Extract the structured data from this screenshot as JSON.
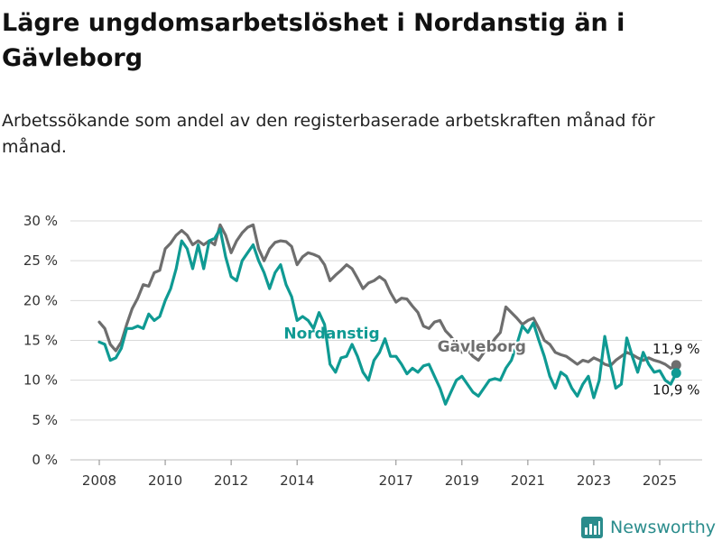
{
  "title": "Lägre ungdomsarbetslöshet i Nordanstig än i Gävleborg",
  "subtitle": "Arbetssökande som andel av den registerbaserade arbetskraften månad för månad.",
  "brand": {
    "name": "Newsworthy",
    "logo_icon": "bar-chart-logo-icon"
  },
  "colors": {
    "nordanstig": "#0f9a93",
    "gavleborg": "#6e6e6e",
    "grid": "#d9d9d9",
    "brand": "#2a8c8c"
  },
  "chart_data": {
    "type": "line",
    "xlabel": "",
    "ylabel": "",
    "ylim": [
      0,
      30
    ],
    "y_ticks": [
      0,
      5,
      10,
      15,
      20,
      25,
      30
    ],
    "y_tick_labels": [
      "0 %",
      "5 %",
      "10 %",
      "15 %",
      "20 %",
      "25 %",
      "30 %"
    ],
    "x_ticks": [
      2008,
      2010,
      2012,
      2014,
      2017,
      2019,
      2021,
      2023,
      2025
    ],
    "x_tick_labels": [
      "2008",
      "2010",
      "2012",
      "2014",
      "2017",
      "2019",
      "2021",
      "2023",
      "2025"
    ],
    "grid": "horizontal",
    "series": [
      {
        "name": "Gävleborg",
        "color": "#6e6e6e",
        "end_label": "11,9 %",
        "points": [
          [
            "2008-01",
            17.3
          ],
          [
            "2008-03",
            16.5
          ],
          [
            "2008-05",
            14.5
          ],
          [
            "2008-07",
            13.7
          ],
          [
            "2008-09",
            14.8
          ],
          [
            "2008-11",
            17
          ],
          [
            "2009-01",
            19
          ],
          [
            "2009-03",
            20.3
          ],
          [
            "2009-05",
            22
          ],
          [
            "2009-07",
            21.8
          ],
          [
            "2009-09",
            23.5
          ],
          [
            "2009-11",
            23.8
          ],
          [
            "2010-01",
            26.5
          ],
          [
            "2010-03",
            27.2
          ],
          [
            "2010-05",
            28.2
          ],
          [
            "2010-07",
            28.8
          ],
          [
            "2010-09",
            28.2
          ],
          [
            "2010-11",
            27
          ],
          [
            "2011-01",
            27.5
          ],
          [
            "2011-03",
            27
          ],
          [
            "2011-05",
            27.5
          ],
          [
            "2011-07",
            27
          ],
          [
            "2011-09",
            29.5
          ],
          [
            "2011-11",
            28.2
          ],
          [
            "2012-01",
            26
          ],
          [
            "2012-03",
            27.5
          ],
          [
            "2012-05",
            28.5
          ],
          [
            "2012-07",
            29.2
          ],
          [
            "2012-09",
            29.5
          ],
          [
            "2012-11",
            26.5
          ],
          [
            "2013-01",
            25
          ],
          [
            "2013-03",
            26.5
          ],
          [
            "2013-05",
            27.3
          ],
          [
            "2013-07",
            27.5
          ],
          [
            "2013-09",
            27.4
          ],
          [
            "2013-11",
            26.8
          ],
          [
            "2014-01",
            24.5
          ],
          [
            "2014-03",
            25.5
          ],
          [
            "2014-05",
            26
          ],
          [
            "2014-07",
            25.8
          ],
          [
            "2014-09",
            25.5
          ],
          [
            "2014-11",
            24.5
          ],
          [
            "2015-01",
            22.5
          ],
          [
            "2015-03",
            23.2
          ],
          [
            "2015-05",
            23.8
          ],
          [
            "2015-07",
            24.5
          ],
          [
            "2015-09",
            24
          ],
          [
            "2015-11",
            22.8
          ],
          [
            "2016-01",
            21.5
          ],
          [
            "2016-03",
            22.2
          ],
          [
            "2016-05",
            22.5
          ],
          [
            "2016-07",
            23
          ],
          [
            "2016-09",
            22.5
          ],
          [
            "2016-11",
            21
          ],
          [
            "2017-01",
            19.8
          ],
          [
            "2017-03",
            20.3
          ],
          [
            "2017-05",
            20.2
          ],
          [
            "2017-07",
            19.3
          ],
          [
            "2017-09",
            18.5
          ],
          [
            "2017-11",
            16.8
          ],
          [
            "2018-01",
            16.5
          ],
          [
            "2018-03",
            17.3
          ],
          [
            "2018-05",
            17.5
          ],
          [
            "2018-07",
            16.2
          ],
          [
            "2018-09",
            15.5
          ],
          [
            "2018-11",
            14.5
          ],
          [
            "2019-01",
            13.5
          ],
          [
            "2019-03",
            13.8
          ],
          [
            "2019-05",
            13
          ],
          [
            "2019-07",
            12.5
          ],
          [
            "2019-09",
            13.5
          ],
          [
            "2019-11",
            14.2
          ],
          [
            "2020-01",
            15.2
          ],
          [
            "2020-03",
            16
          ],
          [
            "2020-05",
            19.2
          ],
          [
            "2020-07",
            18.5
          ],
          [
            "2020-09",
            17.8
          ],
          [
            "2020-11",
            17
          ],
          [
            "2021-01",
            17.5
          ],
          [
            "2021-03",
            17.8
          ],
          [
            "2021-05",
            16.5
          ],
          [
            "2021-07",
            15
          ],
          [
            "2021-09",
            14.5
          ],
          [
            "2021-11",
            13.5
          ],
          [
            "2022-01",
            13.2
          ],
          [
            "2022-03",
            13
          ],
          [
            "2022-05",
            12.5
          ],
          [
            "2022-07",
            12
          ],
          [
            "2022-09",
            12.5
          ],
          [
            "2022-11",
            12.3
          ],
          [
            "2023-01",
            12.8
          ],
          [
            "2023-03",
            12.5
          ],
          [
            "2023-05",
            12
          ],
          [
            "2023-07",
            11.8
          ],
          [
            "2023-09",
            12.5
          ],
          [
            "2023-11",
            13
          ],
          [
            "2024-01",
            13.5
          ],
          [
            "2024-03",
            13.2
          ],
          [
            "2024-05",
            12.8
          ],
          [
            "2024-07",
            12.5
          ],
          [
            "2024-09",
            12.8
          ],
          [
            "2024-11",
            12.5
          ],
          [
            "2025-01",
            12.3
          ],
          [
            "2025-03",
            12
          ],
          [
            "2025-05",
            11.5
          ],
          [
            "2025-07",
            11.9
          ]
        ]
      },
      {
        "name": "Nordanstig",
        "color": "#0f9a93",
        "end_label": "10,9 %",
        "points": [
          [
            "2008-01",
            14.8
          ],
          [
            "2008-03",
            14.5
          ],
          [
            "2008-05",
            12.5
          ],
          [
            "2008-07",
            12.8
          ],
          [
            "2008-09",
            14
          ],
          [
            "2008-11",
            16.5
          ],
          [
            "2009-01",
            16.5
          ],
          [
            "2009-03",
            16.8
          ],
          [
            "2009-05",
            16.5
          ],
          [
            "2009-07",
            18.3
          ],
          [
            "2009-09",
            17.5
          ],
          [
            "2009-11",
            18
          ],
          [
            "2010-01",
            20
          ],
          [
            "2010-03",
            21.5
          ],
          [
            "2010-05",
            24
          ],
          [
            "2010-07",
            27.5
          ],
          [
            "2010-09",
            26.5
          ],
          [
            "2010-11",
            24
          ],
          [
            "2011-01",
            27
          ],
          [
            "2011-03",
            24
          ],
          [
            "2011-05",
            27.5
          ],
          [
            "2011-07",
            27.8
          ],
          [
            "2011-09",
            29
          ],
          [
            "2011-11",
            25.5
          ],
          [
            "2012-01",
            23
          ],
          [
            "2012-03",
            22.5
          ],
          [
            "2012-05",
            25
          ],
          [
            "2012-07",
            26
          ],
          [
            "2012-09",
            27
          ],
          [
            "2012-11",
            25
          ],
          [
            "2013-01",
            23.5
          ],
          [
            "2013-03",
            21.5
          ],
          [
            "2013-05",
            23.5
          ],
          [
            "2013-07",
            24.5
          ],
          [
            "2013-09",
            22
          ],
          [
            "2013-11",
            20.5
          ],
          [
            "2014-01",
            17.5
          ],
          [
            "2014-03",
            18
          ],
          [
            "2014-05",
            17.5
          ],
          [
            "2014-07",
            16.5
          ],
          [
            "2014-09",
            18.5
          ],
          [
            "2014-11",
            17
          ],
          [
            "2015-01",
            12
          ],
          [
            "2015-03",
            11
          ],
          [
            "2015-05",
            12.8
          ],
          [
            "2015-07",
            13
          ],
          [
            "2015-09",
            14.5
          ],
          [
            "2015-11",
            13
          ],
          [
            "2016-01",
            11
          ],
          [
            "2016-03",
            10
          ],
          [
            "2016-05",
            12.5
          ],
          [
            "2016-07",
            13.5
          ],
          [
            "2016-09",
            15.2
          ],
          [
            "2016-11",
            13
          ],
          [
            "2017-01",
            13
          ],
          [
            "2017-03",
            12
          ],
          [
            "2017-05",
            10.8
          ],
          [
            "2017-07",
            11.5
          ],
          [
            "2017-09",
            11
          ],
          [
            "2017-11",
            11.8
          ],
          [
            "2018-01",
            12
          ],
          [
            "2018-03",
            10.5
          ],
          [
            "2018-05",
            9
          ],
          [
            "2018-07",
            7
          ],
          [
            "2018-09",
            8.5
          ],
          [
            "2018-11",
            10
          ],
          [
            "2019-01",
            10.5
          ],
          [
            "2019-03",
            9.5
          ],
          [
            "2019-05",
            8.5
          ],
          [
            "2019-07",
            8
          ],
          [
            "2019-09",
            9
          ],
          [
            "2019-11",
            10
          ],
          [
            "2020-01",
            10.2
          ],
          [
            "2020-03",
            10
          ],
          [
            "2020-05",
            11.5
          ],
          [
            "2020-07",
            12.5
          ],
          [
            "2020-09",
            14.5
          ],
          [
            "2020-11",
            16.8
          ],
          [
            "2021-01",
            16
          ],
          [
            "2021-03",
            17.2
          ],
          [
            "2021-05",
            15
          ],
          [
            "2021-07",
            13
          ],
          [
            "2021-09",
            10.5
          ],
          [
            "2021-11",
            9
          ],
          [
            "2022-01",
            11
          ],
          [
            "2022-03",
            10.5
          ],
          [
            "2022-05",
            9
          ],
          [
            "2022-07",
            8
          ],
          [
            "2022-09",
            9.5
          ],
          [
            "2022-11",
            10.5
          ],
          [
            "2023-01",
            7.8
          ],
          [
            "2023-03",
            10
          ],
          [
            "2023-05",
            15.5
          ],
          [
            "2023-07",
            12
          ],
          [
            "2023-09",
            9
          ],
          [
            "2023-11",
            9.5
          ],
          [
            "2024-01",
            15.3
          ],
          [
            "2024-03",
            13
          ],
          [
            "2024-05",
            11
          ],
          [
            "2024-07",
            13.5
          ],
          [
            "2024-09",
            12
          ],
          [
            "2024-11",
            11
          ],
          [
            "2025-01",
            11.2
          ],
          [
            "2025-03",
            10
          ],
          [
            "2025-05",
            9.5
          ],
          [
            "2025-07",
            10.9
          ]
        ]
      }
    ]
  }
}
